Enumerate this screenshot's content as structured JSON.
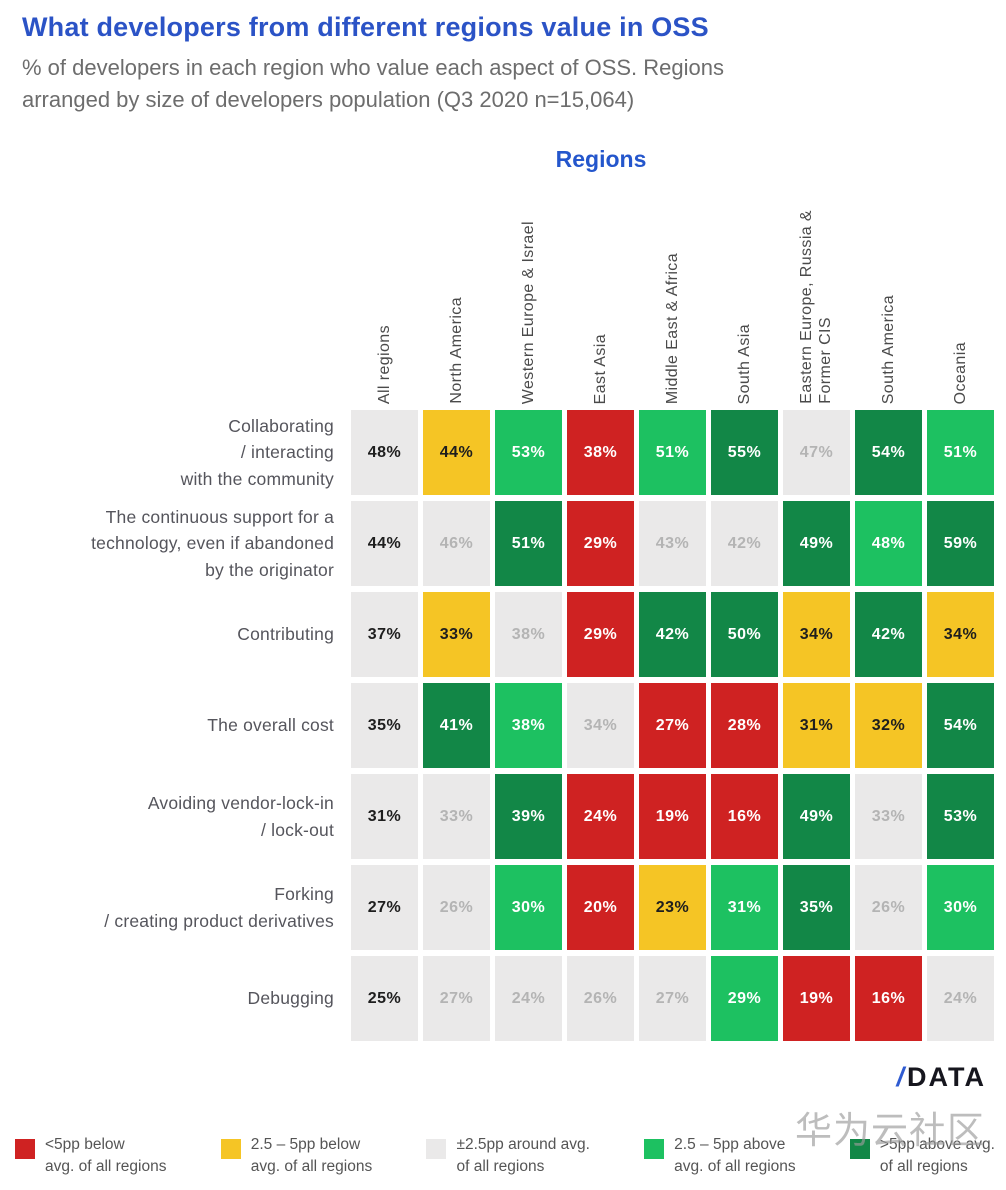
{
  "header": {
    "title": "What developers from different regions value in OSS",
    "subtitle": "% of developers in each region who value each aspect of OSS. Regions\narranged by size of developers population (Q3 2020 n=15,064)"
  },
  "regions_axis_label": "Regions",
  "logo": {
    "slash": "/",
    "text": "DATA"
  },
  "watermark": "华为云社区",
  "colors": {
    "title_blue": "#2B53C6",
    "below_5pp_red": "#CF2222",
    "below_2_5pp_yellow": "#F5C525",
    "around_avg_gray": "#EAE9E9",
    "above_2_5pp_light_green": "#1DC161",
    "above_5pp_dark_green": "#128747",
    "muted_value_text": "#B4B4B4"
  },
  "chart_data": {
    "type": "heatmap",
    "title": "What developers from different regions value in OSS",
    "unit": "%",
    "columns": [
      "All regions",
      "North America",
      "Western Europe & Israel",
      "East Asia",
      "Middle East & Africa",
      "South Asia",
      "Eastern Europe, Russia &\nFormer CIS",
      "South America",
      "Oceania"
    ],
    "rows": [
      {
        "label": "Collaborating\n/ interacting\nwith the community",
        "values": [
          48,
          44,
          53,
          38,
          51,
          55,
          47,
          54,
          51
        ],
        "bins": [
          "base",
          "below-2.5-5",
          "above-2.5-5",
          "below-5",
          "above-2.5-5",
          "above-5",
          "avg",
          "above-5",
          "above-2.5-5"
        ]
      },
      {
        "label": "The continuous support for a\ntechnology, even if abandoned\nby the originator",
        "values": [
          44,
          46,
          51,
          29,
          43,
          42,
          49,
          48,
          59
        ],
        "bins": [
          "base",
          "avg",
          "above-5",
          "below-5",
          "avg",
          "avg",
          "above-5",
          "above-2.5-5",
          "above-5"
        ]
      },
      {
        "label": "Contributing",
        "values": [
          37,
          33,
          38,
          29,
          42,
          50,
          34,
          42,
          34
        ],
        "bins": [
          "base",
          "below-2.5-5",
          "avg",
          "below-5",
          "above-5",
          "above-5",
          "below-2.5-5",
          "above-5",
          "below-2.5-5"
        ]
      },
      {
        "label": "The overall cost",
        "values": [
          35,
          41,
          38,
          34,
          27,
          28,
          31,
          32,
          54
        ],
        "bins": [
          "base",
          "above-5",
          "above-2.5-5",
          "avg",
          "below-5",
          "below-5",
          "below-2.5-5",
          "below-2.5-5",
          "above-5"
        ]
      },
      {
        "label": "Avoiding vendor-lock-in\n/ lock-out",
        "values": [
          31,
          33,
          39,
          24,
          19,
          16,
          49,
          33,
          53
        ],
        "bins": [
          "base",
          "avg",
          "above-5",
          "below-5",
          "below-5",
          "below-5",
          "above-5",
          "avg",
          "above-5"
        ]
      },
      {
        "label": "Forking\n/ creating product derivatives",
        "values": [
          27,
          26,
          30,
          20,
          23,
          31,
          35,
          26,
          30
        ],
        "bins": [
          "base",
          "avg",
          "above-2.5-5",
          "below-5",
          "below-2.5-5",
          "above-2.5-5",
          "above-5",
          "avg",
          "above-2.5-5"
        ]
      },
      {
        "label": "Debugging",
        "values": [
          25,
          27,
          24,
          26,
          27,
          29,
          19,
          16,
          24
        ],
        "bins": [
          "base",
          "avg",
          "avg",
          "avg",
          "avg",
          "above-2.5-5",
          "below-5",
          "below-5",
          "avg"
        ]
      }
    ],
    "legend": [
      {
        "bin": "below-5",
        "label": "<5pp below\navg. of all regions"
      },
      {
        "bin": "below-2.5-5",
        "label": "2.5 – 5pp below\navg. of all regions"
      },
      {
        "bin": "avg",
        "label": "±2.5pp around avg.\nof all regions"
      },
      {
        "bin": "above-2.5-5",
        "label": "2.5 – 5pp above\navg. of all regions"
      },
      {
        "bin": "above-5",
        "label": ">5pp above avg.\nof all regions"
      }
    ],
    "layout": {
      "legend_position": "bottom",
      "column_headers_rotated": true,
      "grid": false
    }
  }
}
